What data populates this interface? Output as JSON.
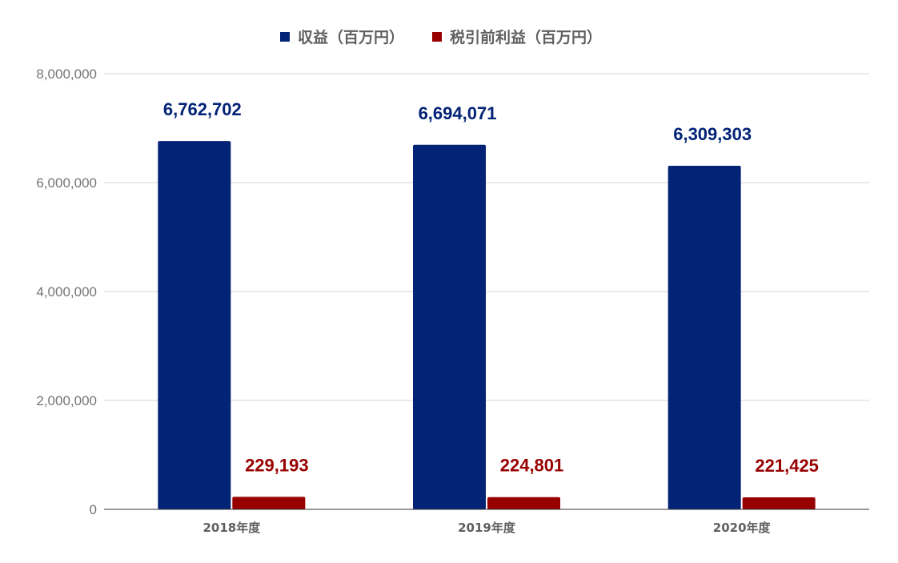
{
  "chart_data": {
    "type": "bar",
    "categories": [
      "2018年度",
      "2019年度",
      "2020年度"
    ],
    "series": [
      {
        "name": "収益（百万円）",
        "color": "#032377",
        "values": [
          6762702,
          6694071,
          6309303
        ],
        "labels": [
          "6,762,702",
          "6,694,071",
          "6,309,303"
        ]
      },
      {
        "name": "税引前利益（百万円）",
        "color": "#980000",
        "values": [
          229193,
          224801,
          221425
        ],
        "labels": [
          "229,193",
          "224,801",
          "221,425"
        ]
      }
    ],
    "y_ticks": [
      0,
      2000000,
      4000000,
      6000000,
      8000000
    ],
    "y_tick_labels": [
      "0",
      "2,000,000",
      "4,000,000",
      "6,000,000",
      "8,000,000"
    ],
    "ylim": [
      0,
      8000000
    ],
    "grid": true,
    "legend_position": "top-center",
    "title": "",
    "xlabel": "",
    "ylabel": ""
  }
}
